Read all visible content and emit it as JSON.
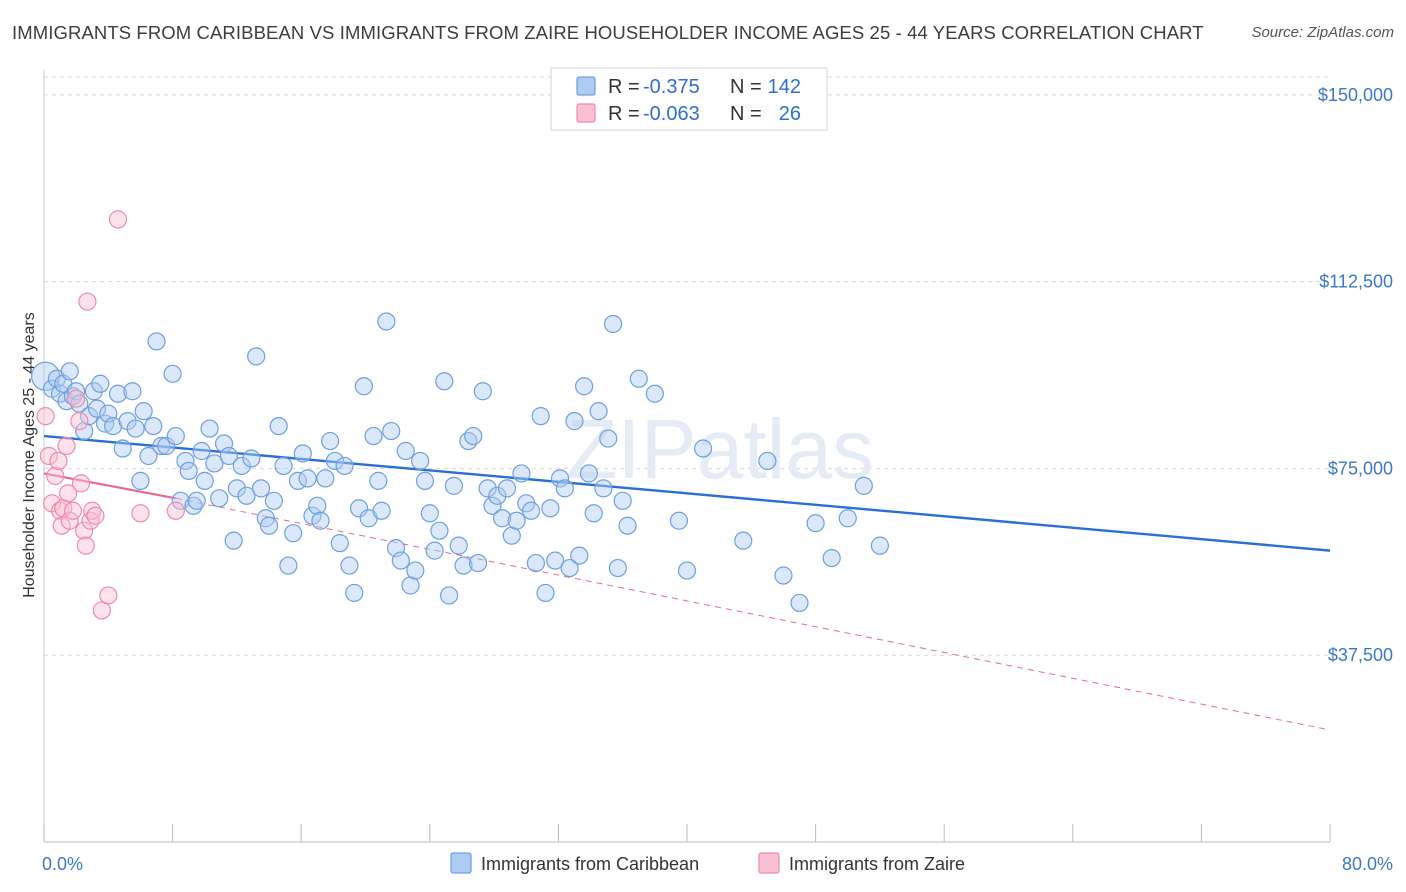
{
  "title": "IMMIGRANTS FROM CARIBBEAN VS IMMIGRANTS FROM ZAIRE HOUSEHOLDER INCOME AGES 25 - 44 YEARS CORRELATION CHART",
  "source": "Source: ZipAtlas.com",
  "watermark": "ZIPatlas",
  "colors": {
    "blue": "#6f9fe0",
    "blue_fill": "#aecbf2",
    "blue_line": "#2a6fd6",
    "pink": "#f08aaa",
    "pink_fill": "#f8c0d2",
    "pink_line": "#e86a93",
    "axis_text": "#3b78c8",
    "grid": "#d8d8d8"
  },
  "legend_top": {
    "rows": [
      {
        "r_label": "R =",
        "r_value": "-0.375",
        "n_label": "N =",
        "n_value": "142"
      },
      {
        "r_label": "R =",
        "r_value": "-0.063",
        "n_label": "N =",
        "n_value": "26"
      }
    ]
  },
  "legend_bottom": [
    "Immigrants from Caribbean",
    "Immigrants from Zaire"
  ],
  "chart_data": {
    "type": "scatter",
    "title": "IMMIGRANTS FROM CARIBBEAN VS IMMIGRANTS FROM ZAIRE HOUSEHOLDER INCOME AGES 25 - 44 YEARS CORRELATION CHART",
    "xlabel": "",
    "ylabel": "Householder Income Ages 25 - 44 years",
    "xlim": [
      0,
      80
    ],
    "ylim": [
      0,
      157000
    ],
    "x_tick_labels": [
      "0.0%",
      "80.0%"
    ],
    "y_ticks": [
      37500,
      75000,
      112500,
      150000
    ],
    "y_tick_labels": [
      "$37,500",
      "$75,000",
      "$112,500",
      "$150,000"
    ],
    "grid": true,
    "legend_position": "top-center",
    "series": [
      {
        "name": "Immigrants from Caribbean",
        "color": "blue",
        "trend": {
          "x": [
            0,
            80
          ],
          "y": [
            81500,
            58500
          ]
        },
        "points": [
          [
            0.1,
            93500
          ],
          [
            0.5,
            91000
          ],
          [
            0.8,
            93000
          ],
          [
            1.0,
            90000
          ],
          [
            1.2,
            92000
          ],
          [
            1.4,
            88500
          ],
          [
            1.6,
            94500
          ],
          [
            1.8,
            89500
          ],
          [
            2.0,
            90500
          ],
          [
            2.2,
            88000
          ],
          [
            2.5,
            82500
          ],
          [
            2.8,
            85500
          ],
          [
            3.1,
            90500
          ],
          [
            3.3,
            87000
          ],
          [
            3.5,
            92000
          ],
          [
            3.8,
            84000
          ],
          [
            4.0,
            86000
          ],
          [
            4.3,
            83500
          ],
          [
            4.6,
            90000
          ],
          [
            4.9,
            79000
          ],
          [
            5.2,
            84500
          ],
          [
            5.5,
            90500
          ],
          [
            5.7,
            83000
          ],
          [
            6.0,
            72500
          ],
          [
            6.2,
            86500
          ],
          [
            6.5,
            77500
          ],
          [
            6.8,
            83500
          ],
          [
            7.0,
            100500
          ],
          [
            7.3,
            79500
          ],
          [
            7.6,
            79500
          ],
          [
            8.0,
            94000
          ],
          [
            8.2,
            81500
          ],
          [
            8.5,
            68500
          ],
          [
            8.8,
            76500
          ],
          [
            9.0,
            74500
          ],
          [
            9.3,
            67500
          ],
          [
            9.5,
            68500
          ],
          [
            9.8,
            78500
          ],
          [
            10.0,
            72500
          ],
          [
            10.3,
            83000
          ],
          [
            10.6,
            76000
          ],
          [
            10.9,
            69000
          ],
          [
            11.2,
            80000
          ],
          [
            11.5,
            77500
          ],
          [
            11.8,
            60500
          ],
          [
            12.0,
            71000
          ],
          [
            12.3,
            75500
          ],
          [
            12.6,
            69500
          ],
          [
            12.9,
            77000
          ],
          [
            13.2,
            97500
          ],
          [
            13.5,
            71000
          ],
          [
            13.8,
            65000
          ],
          [
            14.0,
            63500
          ],
          [
            14.3,
            68500
          ],
          [
            14.6,
            83500
          ],
          [
            14.9,
            75500
          ],
          [
            15.2,
            55500
          ],
          [
            15.5,
            62000
          ],
          [
            15.8,
            72500
          ],
          [
            16.1,
            78000
          ],
          [
            16.4,
            73000
          ],
          [
            16.7,
            65500
          ],
          [
            17.0,
            67500
          ],
          [
            17.2,
            64500
          ],
          [
            17.5,
            73000
          ],
          [
            17.8,
            80500
          ],
          [
            18.1,
            76500
          ],
          [
            18.4,
            60000
          ],
          [
            18.7,
            75500
          ],
          [
            19.0,
            55500
          ],
          [
            19.3,
            50000
          ],
          [
            19.6,
            67000
          ],
          [
            19.9,
            91500
          ],
          [
            20.2,
            65000
          ],
          [
            20.5,
            81500
          ],
          [
            20.8,
            72500
          ],
          [
            21.0,
            66500
          ],
          [
            21.3,
            104500
          ],
          [
            21.6,
            82500
          ],
          [
            21.9,
            59000
          ],
          [
            22.2,
            56500
          ],
          [
            22.5,
            78500
          ],
          [
            22.8,
            51500
          ],
          [
            23.1,
            54500
          ],
          [
            23.4,
            76500
          ],
          [
            23.7,
            72500
          ],
          [
            24.0,
            66000
          ],
          [
            24.3,
            58500
          ],
          [
            24.6,
            62500
          ],
          [
            24.9,
            92500
          ],
          [
            25.2,
            49500
          ],
          [
            25.5,
            71500
          ],
          [
            25.8,
            59500
          ],
          [
            26.1,
            55500
          ],
          [
            26.4,
            80500
          ],
          [
            26.7,
            81500
          ],
          [
            27.0,
            56000
          ],
          [
            27.3,
            90500
          ],
          [
            27.6,
            71000
          ],
          [
            27.9,
            67500
          ],
          [
            28.2,
            69500
          ],
          [
            28.5,
            65000
          ],
          [
            28.8,
            71000
          ],
          [
            29.1,
            61500
          ],
          [
            29.4,
            64500
          ],
          [
            29.7,
            74000
          ],
          [
            30.0,
            68000
          ],
          [
            30.3,
            66500
          ],
          [
            30.6,
            56000
          ],
          [
            30.9,
            85500
          ],
          [
            31.2,
            50000
          ],
          [
            31.5,
            67000
          ],
          [
            31.8,
            56500
          ],
          [
            32.1,
            73000
          ],
          [
            32.4,
            71000
          ],
          [
            32.7,
            55000
          ],
          [
            33.0,
            84500
          ],
          [
            33.3,
            57500
          ],
          [
            33.6,
            91500
          ],
          [
            33.9,
            74000
          ],
          [
            34.2,
            66000
          ],
          [
            34.5,
            86500
          ],
          [
            34.8,
            71000
          ],
          [
            35.1,
            81000
          ],
          [
            35.4,
            104000
          ],
          [
            35.7,
            55000
          ],
          [
            36.0,
            68500
          ],
          [
            36.3,
            63500
          ],
          [
            37.0,
            93000
          ],
          [
            38.0,
            90000
          ],
          [
            39.5,
            64500
          ],
          [
            40.0,
            54500
          ],
          [
            41.0,
            79000
          ],
          [
            43.5,
            60500
          ],
          [
            45.0,
            76500
          ],
          [
            46.0,
            53500
          ],
          [
            47.0,
            48000
          ],
          [
            48.0,
            64000
          ],
          [
            49.0,
            57000
          ],
          [
            50.0,
            65000
          ],
          [
            51.0,
            71500
          ],
          [
            52.0,
            59500
          ]
        ]
      },
      {
        "name": "Immigrants from Zaire",
        "color": "pink",
        "trend": {
          "x": [
            0,
            8.2
          ],
          "y": [
            74000,
            69000
          ]
        },
        "trend_dashed": {
          "x": [
            8.2,
            80
          ],
          "y": [
            69000,
            22500
          ]
        },
        "points": [
          [
            0.1,
            85500
          ],
          [
            0.3,
            77500
          ],
          [
            0.5,
            68000
          ],
          [
            0.7,
            73500
          ],
          [
            0.9,
            76500
          ],
          [
            1.0,
            66500
          ],
          [
            1.1,
            63500
          ],
          [
            1.2,
            67000
          ],
          [
            1.4,
            79500
          ],
          [
            1.5,
            70000
          ],
          [
            1.6,
            64500
          ],
          [
            1.8,
            66500
          ],
          [
            2.0,
            89000
          ],
          [
            2.2,
            84500
          ],
          [
            2.3,
            72000
          ],
          [
            2.5,
            62500
          ],
          [
            2.6,
            59500
          ],
          [
            2.7,
            108500
          ],
          [
            2.9,
            64500
          ],
          [
            3.0,
            66500
          ],
          [
            3.2,
            65500
          ],
          [
            3.6,
            46500
          ],
          [
            4.0,
            49500
          ],
          [
            4.6,
            125000
          ],
          [
            6.0,
            66000
          ],
          [
            8.2,
            66500
          ]
        ]
      }
    ]
  }
}
